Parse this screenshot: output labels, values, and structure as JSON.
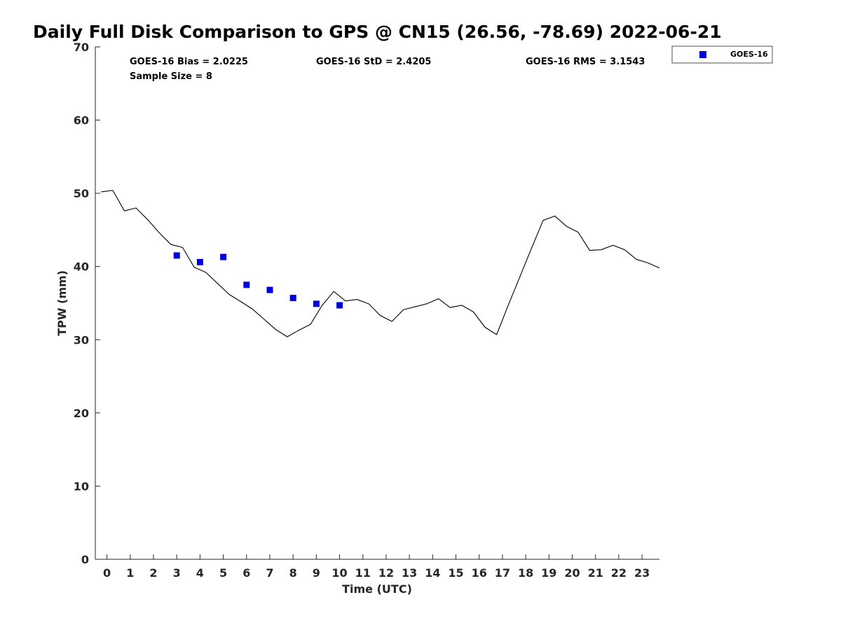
{
  "chart_data": {
    "type": "scatter",
    "title": "Daily Full Disk Comparison to GPS @ CN15 (26.56, -78.69) 2022-06-21",
    "xlabel": "Time (UTC)",
    "ylabel": "TPW (mm)",
    "xlim": [
      -0.5,
      23.75
    ],
    "ylim": [
      0,
      70
    ],
    "x_ticks": [
      0,
      1,
      2,
      3,
      4,
      5,
      6,
      7,
      8,
      9,
      10,
      11,
      12,
      13,
      14,
      15,
      16,
      17,
      18,
      19,
      20,
      21,
      22,
      23
    ],
    "y_ticks": [
      0,
      10,
      20,
      30,
      40,
      50,
      60,
      70
    ],
    "grid": false,
    "legend_position": "outside-top-right",
    "stats": {
      "bias": "GOES-16 Bias = 2.0225",
      "std": "GOES-16 StD = 2.4205",
      "rms": "GOES-16 RMS = 3.1543",
      "sample": "Sample Size = 8"
    },
    "series": [
      {
        "name": "GOES-16",
        "type": "scatter",
        "color": "#0000dd",
        "marker": "square",
        "x": [
          3,
          4,
          5,
          6,
          7,
          8,
          9,
          10
        ],
        "y": [
          41.5,
          40.6,
          41.3,
          37.5,
          36.8,
          35.7,
          34.9,
          34.7
        ]
      },
      {
        "type": "line",
        "color": "#000000",
        "x": [
          -0.25,
          0.25,
          0.75,
          1.25,
          1.75,
          2.25,
          2.75,
          3.25,
          3.75,
          4.25,
          4.75,
          5.25,
          5.75,
          6.25,
          6.75,
          7.25,
          7.75,
          8.25,
          8.75,
          9.25,
          9.75,
          10.25,
          10.75,
          11.25,
          11.75,
          12.25,
          12.75,
          13.25,
          13.75,
          14.25,
          14.75,
          15.25,
          15.75,
          16.25,
          16.75,
          17.25,
          17.75,
          18.25,
          18.75,
          19.25,
          19.75,
          20.25,
          20.75,
          21.25,
          21.75,
          22.25,
          22.75,
          23.25,
          23.75
        ],
        "y": [
          50.2,
          50.4,
          47.6,
          48.0,
          46.4,
          44.6,
          43.0,
          42.6,
          39.9,
          39.2,
          37.7,
          36.2,
          35.2,
          34.2,
          32.8,
          31.4,
          30.4,
          31.3,
          32.1,
          34.7,
          36.6,
          35.3,
          35.5,
          34.9,
          33.3,
          32.5,
          34.1,
          34.5,
          34.9,
          35.6,
          34.4,
          34.7,
          33.8,
          31.7,
          30.7,
          34.7,
          38.6,
          42.5,
          46.3,
          46.9,
          45.5,
          44.7,
          42.2,
          42.3,
          42.9,
          42.3,
          41.0,
          40.5,
          39.8
        ]
      }
    ]
  }
}
